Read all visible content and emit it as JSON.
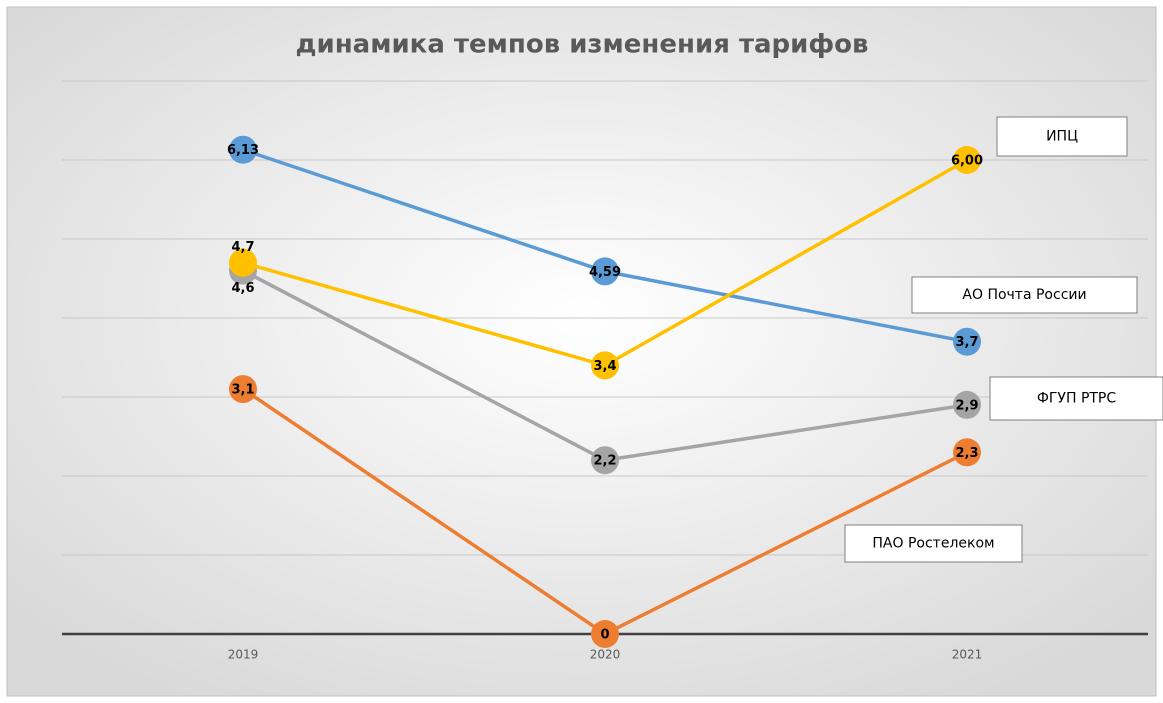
{
  "chart_data": {
    "type": "line",
    "title": "динамика темпов изменения тарифов",
    "categories": [
      "2019",
      "2020",
      "2021"
    ],
    "series": [
      {
        "name": "ИПЦ",
        "color": "#ffc000",
        "values": [
          4.7,
          3.4,
          6.0
        ],
        "value_labels": [
          "4,7",
          "3,4",
          "6,00"
        ]
      },
      {
        "name": "АО Почта России",
        "color": "#5b9bd5",
        "values": [
          6.13,
          4.59,
          3.7
        ],
        "value_labels": [
          "6,13",
          "4,59",
          "3,7"
        ]
      },
      {
        "name": "ФГУП РТРС",
        "color": "#a5a5a5",
        "values": [
          4.6,
          2.2,
          2.9
        ],
        "value_labels": [
          "4,6",
          "2,2",
          "2,9"
        ]
      },
      {
        "name": "ПАО Ростелеком",
        "color": "#ed7d31",
        "values": [
          3.1,
          0,
          2.3
        ],
        "value_labels": [
          "3,1",
          "0",
          "2,3"
        ]
      }
    ],
    "ylim": [
      0,
      7
    ],
    "yticks": [
      0,
      1,
      2,
      3,
      4,
      5,
      6,
      7
    ],
    "grid": true
  }
}
